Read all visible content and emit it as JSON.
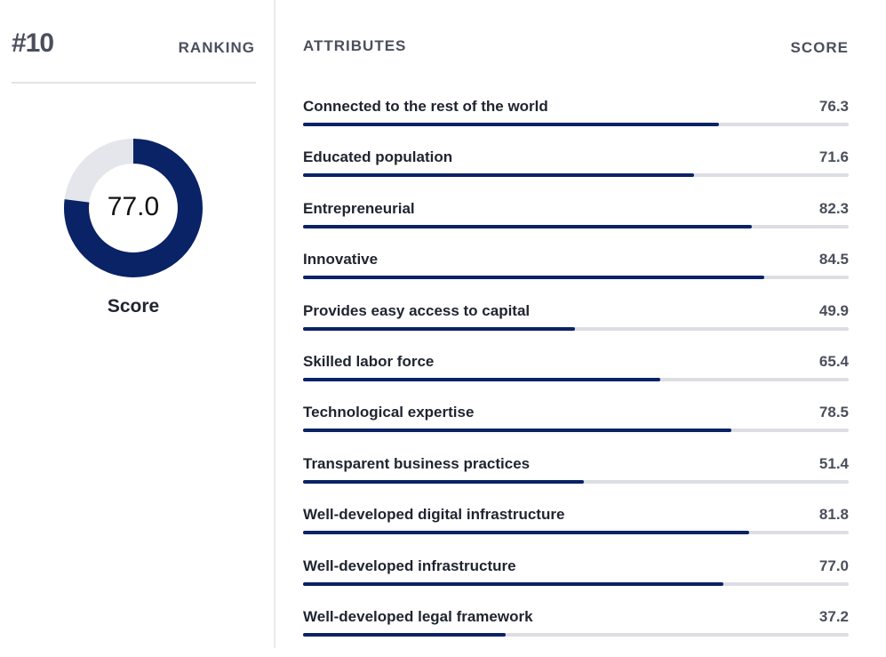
{
  "ranking": {
    "value": "#10",
    "label": "RANKING"
  },
  "overall": {
    "score": 77.0,
    "score_text": "77.0",
    "caption": "Score",
    "max": 100
  },
  "colors": {
    "accent": "#0a2266",
    "track": "#dcdee3",
    "donut_track": "#e4e6ec"
  },
  "table": {
    "attributes_header": "ATTRIBUTES",
    "score_header": "SCORE",
    "rows": [
      {
        "label": "Connected to the rest of the world",
        "value": "76.3"
      },
      {
        "label": "Educated population",
        "value": "71.6"
      },
      {
        "label": "Entrepreneurial",
        "value": "82.3"
      },
      {
        "label": "Innovative",
        "value": "84.5"
      },
      {
        "label": "Provides easy access to capital",
        "value": "49.9"
      },
      {
        "label": "Skilled labor force",
        "value": "65.4"
      },
      {
        "label": "Technological expertise",
        "value": "78.5"
      },
      {
        "label": "Transparent business practices",
        "value": "51.4"
      },
      {
        "label": "Well-developed digital infrastructure",
        "value": "81.8"
      },
      {
        "label": "Well-developed infrastructure",
        "value": "77.0"
      },
      {
        "label": "Well-developed legal framework",
        "value": "37.2"
      }
    ]
  }
}
